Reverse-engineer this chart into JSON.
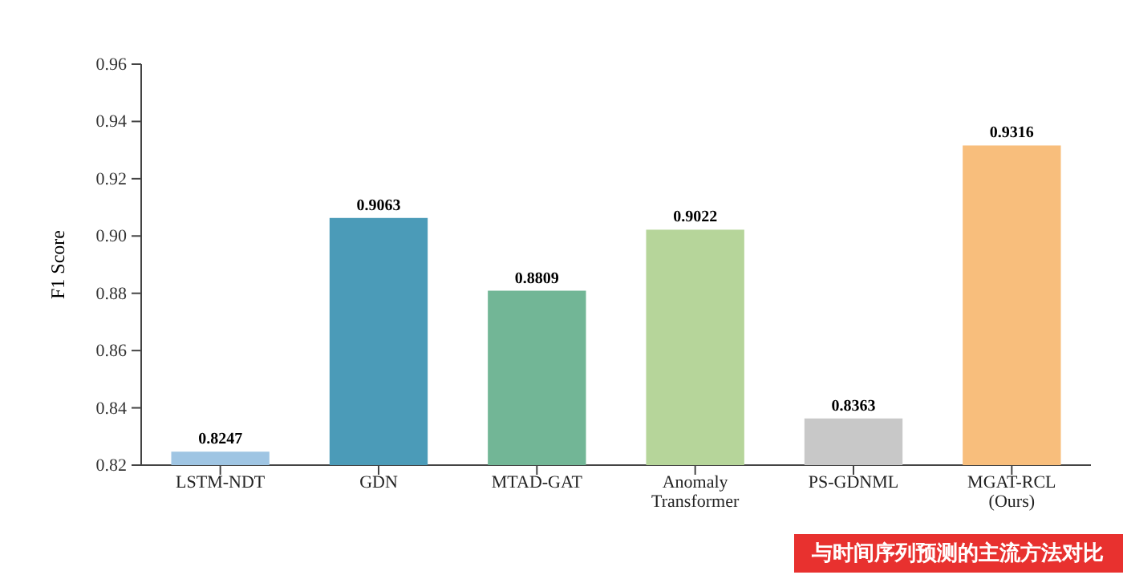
{
  "chart_data": {
    "type": "bar",
    "ylabel": "F1 Score",
    "categories": [
      "LSTM-NDT",
      "GDN",
      "MTAD-GAT",
      "Anomaly Transformer",
      "PS-GDNML",
      "MGAT-RCL (Ours)"
    ],
    "values": [
      0.8247,
      0.9063,
      0.8809,
      0.9022,
      0.8363,
      0.9316
    ],
    "colors": [
      "#9fc5e3",
      "#4b9bb8",
      "#72b696",
      "#b6d59a",
      "#c8c8c8",
      "#f8be7c"
    ],
    "ylim": [
      0.82,
      0.96
    ],
    "yticks": [
      {
        "value": 0.82,
        "label": "0.82"
      },
      {
        "value": 0.84,
        "label": "0.84"
      },
      {
        "value": 0.86,
        "label": "0.86"
      },
      {
        "value": 0.88,
        "label": "0.88"
      },
      {
        "value": 0.9,
        "label": "0.90"
      },
      {
        "value": 0.92,
        "label": "0.92"
      },
      {
        "value": 0.94,
        "label": "0.94"
      },
      {
        "value": 0.96,
        "label": "0.96"
      }
    ],
    "data_labels": true,
    "annotations": [
      "与时间序列预测的主流方法对比"
    ]
  }
}
